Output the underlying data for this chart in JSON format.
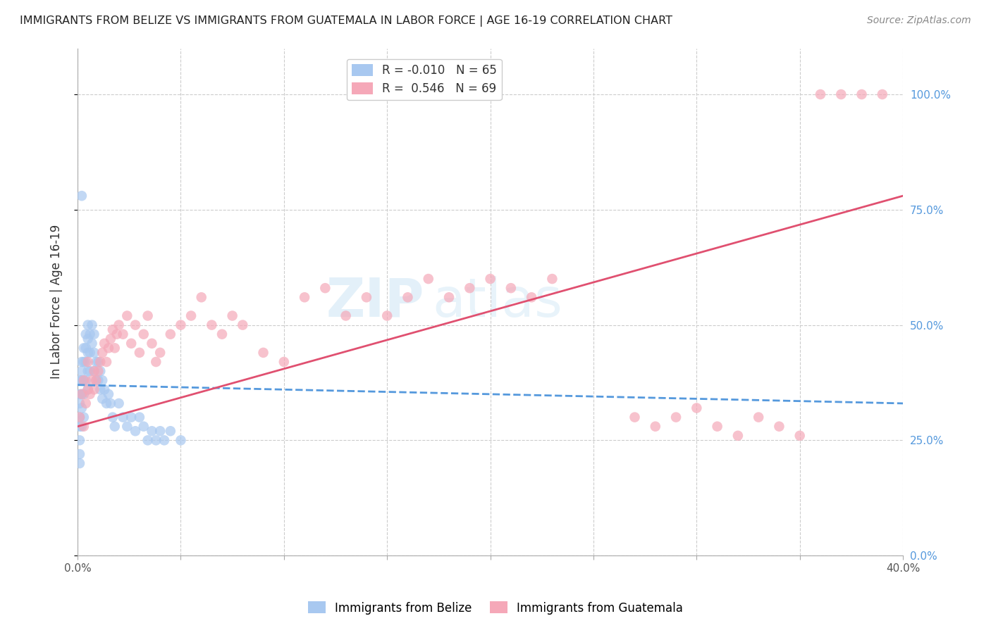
{
  "title": "IMMIGRANTS FROM BELIZE VS IMMIGRANTS FROM GUATEMALA IN LABOR FORCE | AGE 16-19 CORRELATION CHART",
  "source": "Source: ZipAtlas.com",
  "ylabel": "In Labor Force | Age 16-19",
  "xmin": 0.0,
  "xmax": 0.4,
  "ymin": 0.0,
  "ymax": 1.1,
  "yticks": [
    0.0,
    0.25,
    0.5,
    0.75,
    1.0
  ],
  "ytick_labels": [
    "0.0%",
    "25.0%",
    "50.0%",
    "75.0%",
    "100.0%"
  ],
  "xticks": [
    0.0,
    0.05,
    0.1,
    0.15,
    0.2,
    0.25,
    0.3,
    0.35,
    0.4
  ],
  "xtick_labels": [
    "0.0%",
    "",
    "",
    "",
    "",
    "",
    "",
    "",
    "40.0%"
  ],
  "legend_R_belize": "-0.010",
  "legend_N_belize": "65",
  "legend_R_guatemala": "0.546",
  "legend_N_guatemala": "69",
  "color_belize": "#a8c8f0",
  "color_guatemala": "#f5a8b8",
  "color_belize_line": "#5599dd",
  "color_guatemala_line": "#e05070",
  "watermark_zip": "ZIP",
  "watermark_atlas": "atlas",
  "belize_x": [
    0.001,
    0.001,
    0.001,
    0.001,
    0.001,
    0.001,
    0.001,
    0.001,
    0.002,
    0.002,
    0.002,
    0.002,
    0.002,
    0.002,
    0.003,
    0.003,
    0.003,
    0.003,
    0.003,
    0.004,
    0.004,
    0.004,
    0.004,
    0.005,
    0.005,
    0.005,
    0.005,
    0.005,
    0.006,
    0.006,
    0.006,
    0.007,
    0.007,
    0.008,
    0.008,
    0.008,
    0.009,
    0.009,
    0.01,
    0.01,
    0.011,
    0.011,
    0.012,
    0.012,
    0.013,
    0.014,
    0.015,
    0.016,
    0.017,
    0.018,
    0.02,
    0.022,
    0.024,
    0.026,
    0.028,
    0.03,
    0.032,
    0.034,
    0.036,
    0.038,
    0.04,
    0.042,
    0.045,
    0.05,
    0.002
  ],
  "belize_y": [
    0.38,
    0.35,
    0.33,
    0.3,
    0.28,
    0.25,
    0.22,
    0.2,
    0.42,
    0.4,
    0.38,
    0.35,
    0.32,
    0.28,
    0.45,
    0.42,
    0.38,
    0.35,
    0.3,
    0.48,
    0.45,
    0.42,
    0.38,
    0.5,
    0.47,
    0.44,
    0.4,
    0.36,
    0.48,
    0.44,
    0.4,
    0.5,
    0.46,
    0.48,
    0.44,
    0.4,
    0.42,
    0.38,
    0.42,
    0.38,
    0.4,
    0.36,
    0.38,
    0.34,
    0.36,
    0.33,
    0.35,
    0.33,
    0.3,
    0.28,
    0.33,
    0.3,
    0.28,
    0.3,
    0.27,
    0.3,
    0.28,
    0.25,
    0.27,
    0.25,
    0.27,
    0.25,
    0.27,
    0.25,
    0.78
  ],
  "guatemala_x": [
    0.001,
    0.002,
    0.003,
    0.003,
    0.004,
    0.005,
    0.005,
    0.006,
    0.007,
    0.008,
    0.008,
    0.009,
    0.01,
    0.011,
    0.012,
    0.013,
    0.014,
    0.015,
    0.016,
    0.017,
    0.018,
    0.019,
    0.02,
    0.022,
    0.024,
    0.026,
    0.028,
    0.03,
    0.032,
    0.034,
    0.036,
    0.038,
    0.04,
    0.045,
    0.05,
    0.055,
    0.06,
    0.065,
    0.07,
    0.075,
    0.08,
    0.09,
    0.1,
    0.11,
    0.12,
    0.13,
    0.14,
    0.15,
    0.16,
    0.17,
    0.18,
    0.19,
    0.2,
    0.21,
    0.22,
    0.23,
    0.27,
    0.28,
    0.29,
    0.3,
    0.31,
    0.32,
    0.33,
    0.34,
    0.35,
    0.36,
    0.37,
    0.38,
    0.39
  ],
  "guatemala_y": [
    0.3,
    0.35,
    0.28,
    0.38,
    0.33,
    0.36,
    0.42,
    0.35,
    0.38,
    0.4,
    0.36,
    0.38,
    0.4,
    0.42,
    0.44,
    0.46,
    0.42,
    0.45,
    0.47,
    0.49,
    0.45,
    0.48,
    0.5,
    0.48,
    0.52,
    0.46,
    0.5,
    0.44,
    0.48,
    0.52,
    0.46,
    0.42,
    0.44,
    0.48,
    0.5,
    0.52,
    0.56,
    0.5,
    0.48,
    0.52,
    0.5,
    0.44,
    0.42,
    0.56,
    0.58,
    0.52,
    0.56,
    0.52,
    0.56,
    0.6,
    0.56,
    0.58,
    0.6,
    0.58,
    0.56,
    0.6,
    0.3,
    0.28,
    0.3,
    0.32,
    0.28,
    0.26,
    0.3,
    0.28,
    0.26,
    1.0,
    1.0,
    1.0,
    1.0
  ]
}
